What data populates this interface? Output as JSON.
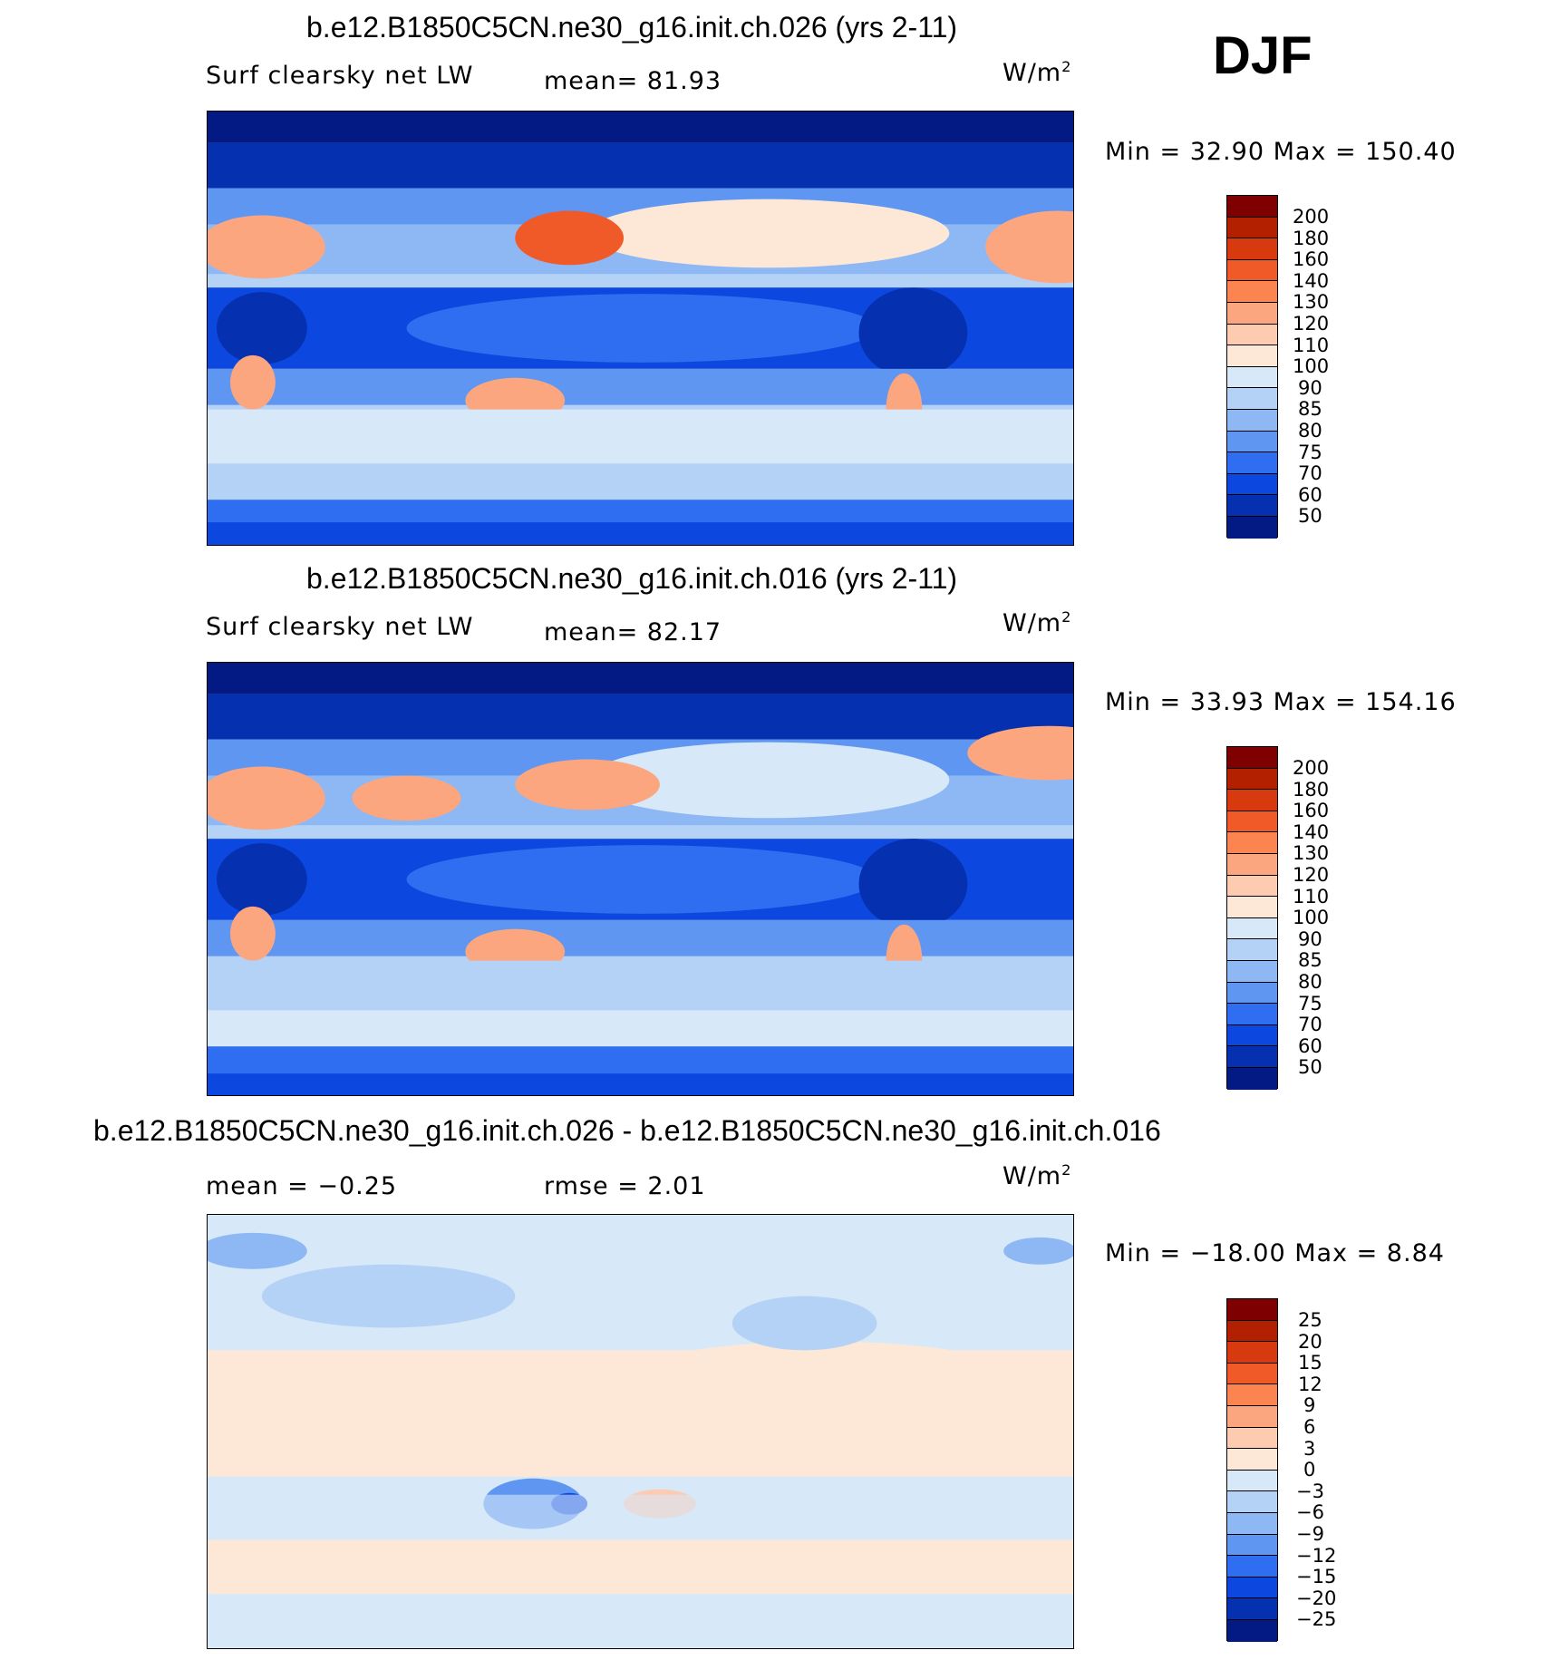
{
  "season": "DJF",
  "units_base": "W/m",
  "units_exp": "2",
  "panels": [
    {
      "title": "b.e12.B1850C5CN.ne30_g16.init.ch.026 (yrs 2-11)",
      "left_label": "Surf clearsky net LW",
      "mid_label": "mean=  81.93",
      "min_max": "Min =   32.90 Max = 150.40",
      "levels": [
        "200",
        "180",
        "160",
        "140",
        "130",
        "120",
        "110",
        "100",
        "90",
        "85",
        "80",
        "75",
        "70",
        "60",
        "50"
      ],
      "colors": [
        "#7f0000",
        "#b22000",
        "#d83a10",
        "#f05a28",
        "#fb8450",
        "#fca680",
        "#fdcbb0",
        "#fde8d8",
        "#d7e8f8",
        "#b4d2f6",
        "#8eb8f4",
        "#5e96f2",
        "#2f6ef0",
        "#0c48e0",
        "#0530b0",
        "#031a85"
      ]
    },
    {
      "title": "b.e12.B1850C5CN.ne30_g16.init.ch.016 (yrs 2-11)",
      "left_label": "Surf clearsky net LW",
      "mid_label": "mean=  82.17",
      "min_max": "Min =   33.93 Max = 154.16",
      "levels": [
        "200",
        "180",
        "160",
        "140",
        "130",
        "120",
        "110",
        "100",
        "90",
        "85",
        "80",
        "75",
        "70",
        "60",
        "50"
      ],
      "colors": [
        "#7f0000",
        "#b22000",
        "#d83a10",
        "#f05a28",
        "#fb8450",
        "#fca680",
        "#fdcbb0",
        "#fde8d8",
        "#d7e8f8",
        "#b4d2f6",
        "#8eb8f4",
        "#5e96f2",
        "#2f6ef0",
        "#0c48e0",
        "#0530b0",
        "#031a85"
      ]
    },
    {
      "title": "b.e12.B1850C5CN.ne30_g16.init.ch.026 - b.e12.B1850C5CN.ne30_g16.init.ch.016",
      "left_label": "mean =   −0.25",
      "mid_label": "rmse =    2.01",
      "min_max": "Min = −18.00 Max =     8.84",
      "levels": [
        "25",
        "20",
        "15",
        "12",
        "9",
        "6",
        "3",
        "0",
        "−3",
        "−6",
        "−9",
        "−12",
        "−15",
        "−20",
        "−25"
      ],
      "colors": [
        "#7f0000",
        "#b22000",
        "#d83a10",
        "#f05a28",
        "#fb8450",
        "#fca680",
        "#fdcbb0",
        "#fde8d8",
        "#d7e8f8",
        "#b4d2f6",
        "#8eb8f4",
        "#5e96f2",
        "#2f6ef0",
        "#0c48e0",
        "#0530b0",
        "#031a85"
      ]
    }
  ]
}
